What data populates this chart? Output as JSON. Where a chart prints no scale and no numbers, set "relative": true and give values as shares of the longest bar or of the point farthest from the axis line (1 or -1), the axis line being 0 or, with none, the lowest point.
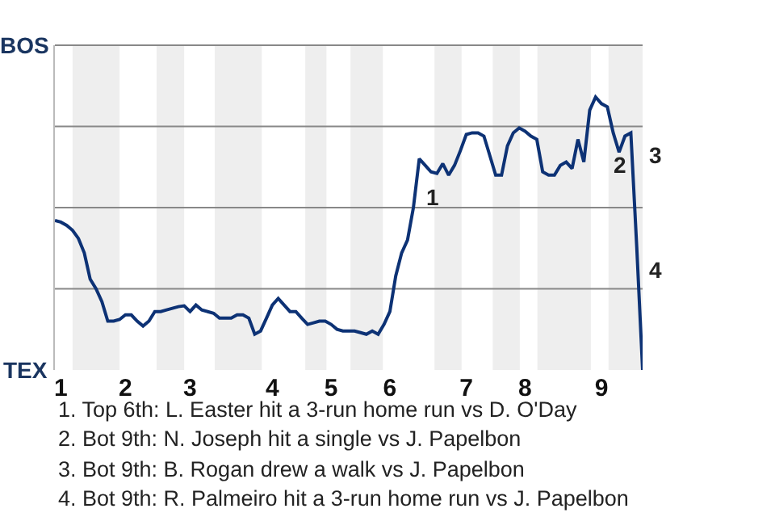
{
  "chart_data": {
    "type": "line",
    "categories": [
      null,
      "1",
      null,
      null,
      null,
      null,
      null,
      null,
      null,
      null,
      null,
      null,
      "2",
      null,
      null,
      null,
      null,
      null,
      null,
      null,
      null,
      null,
      null,
      "3",
      null,
      null,
      null,
      null,
      null,
      null,
      null,
      null,
      null,
      null,
      null,
      null,
      null,
      "4",
      null,
      null,
      null,
      null,
      null,
      null,
      null,
      null,
      null,
      "5",
      null,
      null,
      null,
      null,
      null,
      null,
      null,
      null,
      null,
      "6",
      null,
      null,
      null,
      null,
      null,
      null,
      null,
      null,
      null,
      null,
      null,
      null,
      "7",
      null,
      null,
      null,
      null,
      null,
      null,
      null,
      null,
      null,
      "8",
      null,
      null,
      null,
      null,
      null,
      null,
      null,
      null,
      null,
      null,
      null,
      null,
      "9",
      null,
      null,
      null,
      null,
      null,
      null,
      null
    ],
    "values": [
      0.548,
      0.542,
      0.53,
      0.512,
      0.482,
      0.429,
      0.333,
      0.298,
      0.25,
      0.179,
      0.179,
      0.185,
      0.202,
      0.202,
      0.179,
      0.161,
      0.179,
      0.214,
      0.214,
      0.22,
      0.226,
      0.232,
      0.235,
      0.214,
      0.238,
      0.22,
      0.214,
      0.208,
      0.19,
      0.19,
      0.19,
      0.202,
      0.202,
      0.19,
      0.131,
      0.143,
      0.19,
      0.238,
      0.262,
      0.238,
      0.214,
      0.214,
      0.19,
      0.167,
      0.173,
      0.179,
      0.179,
      0.167,
      0.149,
      0.143,
      0.143,
      0.143,
      0.137,
      0.131,
      0.143,
      0.131,
      0.167,
      0.214,
      0.345,
      0.429,
      0.476,
      0.595,
      0.774,
      0.75,
      0.726,
      0.72,
      0.756,
      0.714,
      0.75,
      0.804,
      0.863,
      0.869,
      0.869,
      0.857,
      0.786,
      0.714,
      0.714,
      0.821,
      0.869,
      0.887,
      0.875,
      0.857,
      0.845,
      0.726,
      0.714,
      0.714,
      0.75,
      0.762,
      0.738,
      0.845,
      0.762,
      0.952,
      1,
      0.976,
      0.964,
      0.869,
      0.798,
      0.857,
      0.869,
      0.452,
      0
    ],
    "relative": true,
    "color": "#0d3275",
    "marker": "none",
    "line_style": "solid",
    "grid": "y",
    "annotations": [
      "BOS",
      "TEX",
      "1",
      "2",
      "3",
      "4",
      "1. Top 6th: L. Easter hit a 3-run home run vs D. O'Day",
      "2. Bot 9th: N. Joseph hit a single vs J. Papelbon",
      "3. Bot 9th: B. Rogan drew a walk vs J. Papelbon",
      "4. Bot 9th: R. Palmeiro hit a 3-run home run vs J. Papelbon"
    ]
  }
}
